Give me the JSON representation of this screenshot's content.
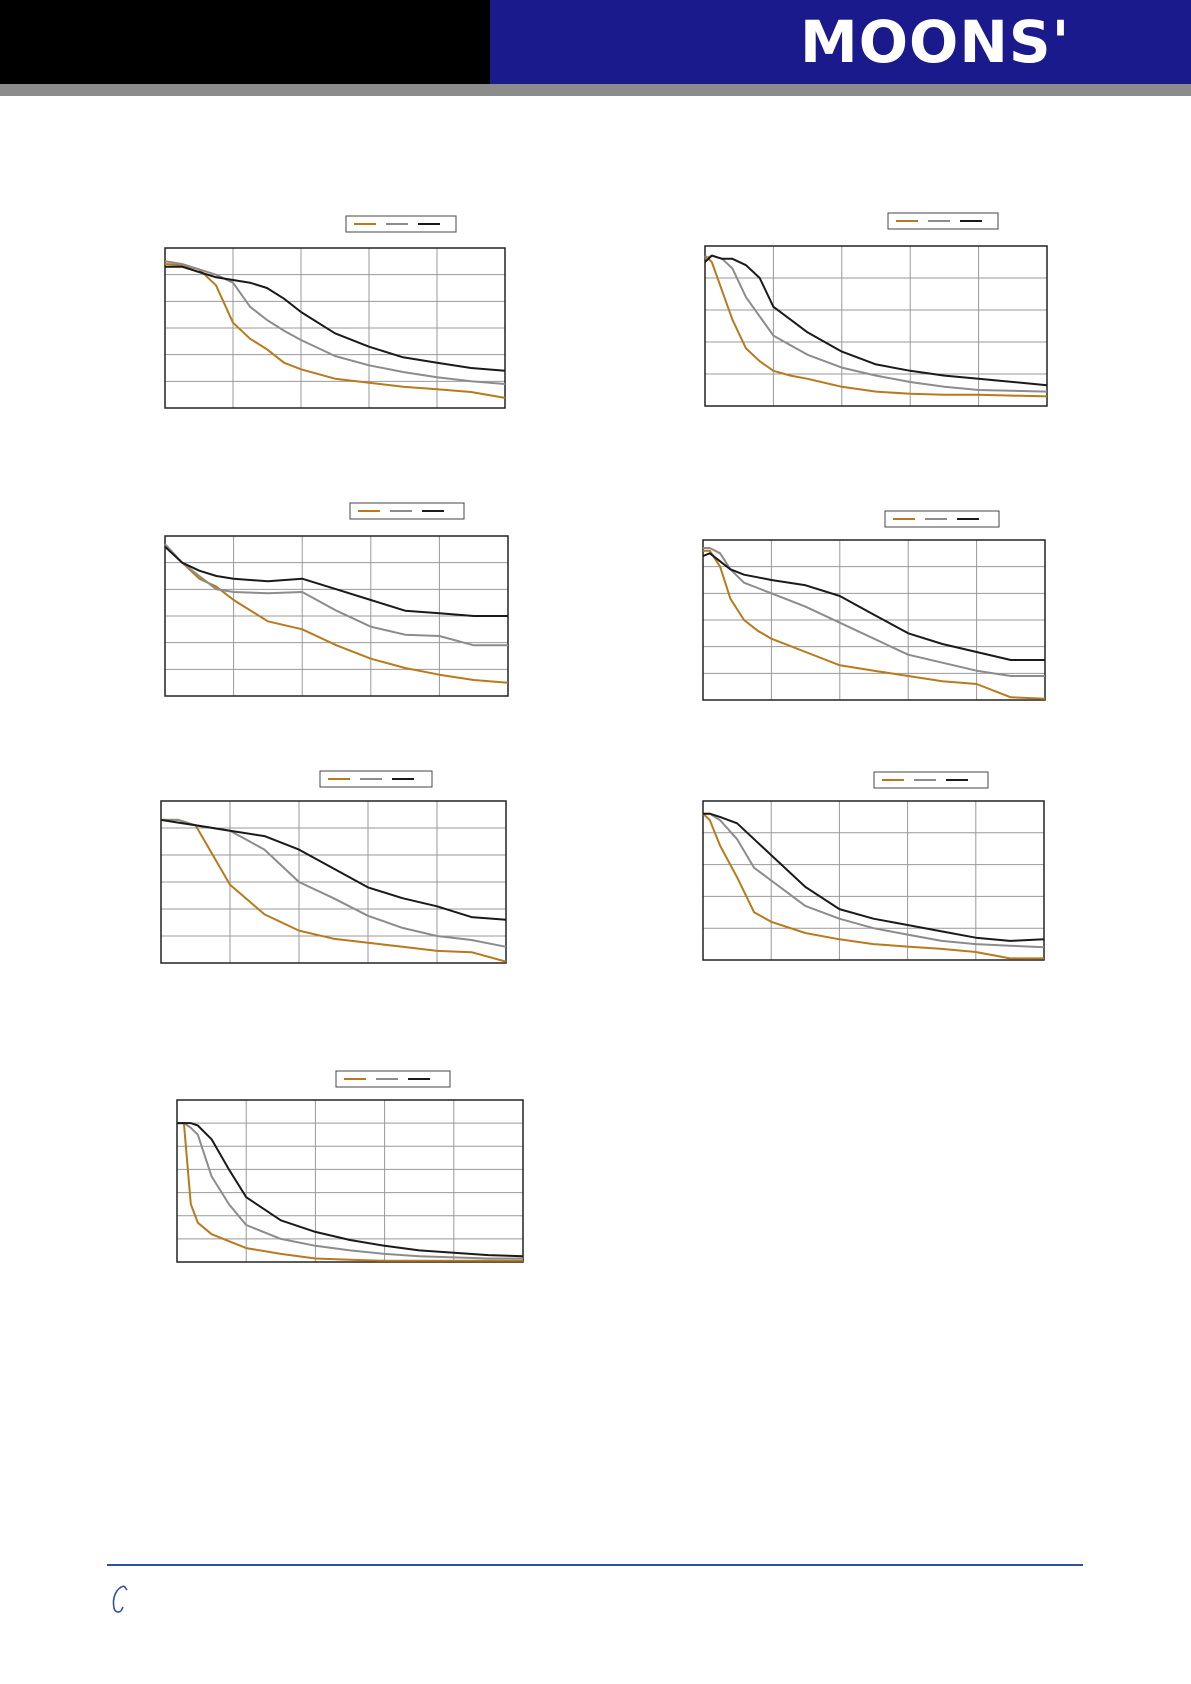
{
  "header": {
    "logo_text": "MOONS'",
    "colors": {
      "left_bar": "#000000",
      "right_bar": "#1a1a8c",
      "rule": "#8c8c8c"
    }
  },
  "series_colors": [
    "#b87a1c",
    "#8c8c8c",
    "#1a1a1a"
  ],
  "chart_data": [
    {
      "type": "line",
      "legend_placement": "top-center",
      "grid": true,
      "x": [
        0,
        0.25,
        0.5,
        0.75,
        1,
        1.25,
        1.5,
        1.75,
        2,
        2.5,
        3,
        3.5,
        4,
        4.5,
        5
      ],
      "ylim": [
        0,
        6
      ],
      "xlim": [
        0,
        5
      ],
      "series": [
        {
          "values": [
            5.4,
            5.35,
            5.2,
            4.6,
            3.2,
            2.6,
            2.2,
            1.7,
            1.45,
            1.1,
            0.95,
            0.8,
            0.7,
            0.6,
            0.38
          ]
        },
        {
          "values": [
            5.5,
            5.4,
            5.2,
            5.0,
            4.7,
            3.8,
            3.3,
            2.9,
            2.55,
            1.95,
            1.6,
            1.35,
            1.15,
            1.0,
            0.9
          ]
        },
        {
          "values": [
            5.3,
            5.3,
            5.1,
            4.9,
            4.8,
            4.7,
            4.5,
            4.1,
            3.6,
            2.8,
            2.3,
            1.9,
            1.7,
            1.5,
            1.4
          ]
        }
      ]
    },
    {
      "type": "line",
      "legend_placement": "top-center",
      "grid": true,
      "x": [
        0,
        0.1,
        0.25,
        0.4,
        0.6,
        0.8,
        1,
        1.25,
        1.5,
        2,
        2.5,
        3,
        3.5,
        4,
        5
      ],
      "ylim": [
        0,
        5
      ],
      "xlim": [
        0,
        5
      ],
      "series": [
        {
          "values": [
            4.7,
            4.5,
            3.6,
            2.7,
            1.8,
            1.4,
            1.1,
            0.95,
            0.85,
            0.6,
            0.45,
            0.38,
            0.35,
            0.35,
            0.3
          ]
        },
        {
          "values": [
            4.6,
            4.7,
            4.6,
            4.3,
            3.4,
            2.8,
            2.2,
            1.9,
            1.6,
            1.2,
            0.95,
            0.75,
            0.6,
            0.5,
            0.45
          ]
        },
        {
          "values": [
            4.5,
            4.7,
            4.6,
            4.6,
            4.4,
            4.0,
            3.1,
            2.7,
            2.3,
            1.7,
            1.3,
            1.1,
            0.95,
            0.85,
            0.65
          ]
        }
      ]
    },
    {
      "type": "line",
      "legend_placement": "top-center",
      "grid": true,
      "x": [
        0,
        0.25,
        0.5,
        0.75,
        1,
        1.5,
        2,
        2.5,
        3,
        3.5,
        4,
        4.5,
        5
      ],
      "ylim": [
        0,
        6
      ],
      "xlim": [
        0,
        5
      ],
      "series": [
        {
          "values": [
            5.6,
            5.0,
            4.4,
            4.1,
            3.6,
            2.8,
            2.5,
            1.9,
            1.4,
            1.05,
            0.8,
            0.6,
            0.5
          ]
        },
        {
          "values": [
            5.7,
            5.0,
            4.5,
            4.0,
            3.9,
            3.85,
            3.9,
            3.2,
            2.6,
            2.3,
            2.25,
            1.9,
            1.9
          ]
        },
        {
          "values": [
            5.6,
            5.0,
            4.7,
            4.5,
            4.4,
            4.3,
            4.4,
            4.0,
            3.6,
            3.2,
            3.1,
            3.0,
            3.0
          ]
        }
      ]
    },
    {
      "type": "line",
      "legend_placement": "top-center",
      "grid": true,
      "x": [
        0,
        0.1,
        0.25,
        0.4,
        0.6,
        0.8,
        1,
        1.5,
        2,
        2.5,
        3,
        3.5,
        4,
        4.5,
        5
      ],
      "ylim": [
        0,
        6
      ],
      "xlim": [
        0,
        5
      ],
      "series": [
        {
          "values": [
            5.6,
            5.6,
            5.0,
            3.8,
            3.0,
            2.6,
            2.3,
            1.8,
            1.3,
            1.1,
            0.9,
            0.7,
            0.6,
            0.1,
            0.05
          ]
        },
        {
          "values": [
            5.7,
            5.7,
            5.5,
            4.9,
            4.4,
            4.2,
            4.0,
            3.5,
            2.9,
            2.3,
            1.7,
            1.4,
            1.1,
            0.9,
            0.9
          ]
        },
        {
          "values": [
            5.4,
            5.5,
            5.2,
            4.9,
            4.7,
            4.6,
            4.5,
            4.3,
            3.9,
            3.2,
            2.5,
            2.1,
            1.8,
            1.5,
            1.5
          ]
        }
      ]
    },
    {
      "type": "line",
      "legend_placement": "top-center",
      "grid": true,
      "x": [
        0,
        0.25,
        0.5,
        0.75,
        1,
        1.5,
        2,
        2.5,
        3,
        3.5,
        4,
        4.5,
        5
      ],
      "ylim": [
        0,
        6
      ],
      "xlim": [
        0,
        5
      ],
      "series": [
        {
          "values": [
            5.3,
            5.3,
            5.1,
            4.0,
            2.9,
            1.8,
            1.2,
            0.9,
            0.75,
            0.6,
            0.45,
            0.4,
            0.05
          ]
        },
        {
          "values": [
            5.3,
            5.3,
            5.1,
            5.0,
            4.9,
            4.2,
            3.0,
            2.4,
            1.75,
            1.3,
            1.0,
            0.85,
            0.6
          ]
        },
        {
          "values": [
            5.3,
            5.2,
            5.1,
            5.0,
            4.9,
            4.7,
            4.2,
            3.5,
            2.8,
            2.4,
            2.1,
            1.7,
            1.6
          ]
        }
      ]
    },
    {
      "type": "line",
      "legend_placement": "top-center",
      "grid": true,
      "x": [
        0,
        0.1,
        0.25,
        0.5,
        0.75,
        1,
        1.5,
        2,
        2.5,
        3,
        3.5,
        4,
        4.5,
        5
      ],
      "ylim": [
        0,
        5
      ],
      "xlim": [
        0,
        5
      ],
      "series": [
        {
          "values": [
            4.6,
            4.4,
            3.6,
            2.6,
            1.5,
            1.2,
            0.85,
            0.65,
            0.5,
            0.42,
            0.35,
            0.25,
            0.05,
            0.05
          ]
        },
        {
          "values": [
            4.6,
            4.6,
            4.4,
            3.8,
            2.9,
            2.5,
            1.7,
            1.3,
            1.0,
            0.8,
            0.6,
            0.5,
            0.45,
            0.4
          ]
        },
        {
          "values": [
            4.6,
            4.6,
            4.5,
            4.3,
            3.8,
            3.3,
            2.3,
            1.6,
            1.3,
            1.1,
            0.9,
            0.7,
            0.6,
            0.65
          ]
        }
      ]
    },
    {
      "type": "line",
      "legend_placement": "top-center",
      "grid": true,
      "x": [
        0,
        0.1,
        0.2,
        0.3,
        0.5,
        0.75,
        1,
        1.5,
        2,
        2.5,
        3,
        3.5,
        4,
        4.5,
        5
      ],
      "ylim": [
        0,
        7
      ],
      "xlim": [
        0,
        5
      ],
      "series": [
        {
          "values": [
            6.0,
            6.0,
            2.5,
            1.7,
            1.2,
            0.9,
            0.6,
            0.35,
            0.15,
            0.1,
            0.05,
            0.05,
            0.05,
            0.05,
            0.05
          ]
        },
        {
          "values": [
            6.0,
            6.0,
            5.8,
            5.5,
            3.7,
            2.5,
            1.6,
            1.0,
            0.7,
            0.5,
            0.35,
            0.25,
            0.2,
            0.15,
            0.15
          ]
        },
        {
          "values": [
            6.0,
            6.0,
            6.0,
            5.9,
            5.3,
            4.0,
            2.8,
            1.8,
            1.3,
            0.95,
            0.7,
            0.5,
            0.4,
            0.3,
            0.25
          ]
        }
      ]
    }
  ]
}
